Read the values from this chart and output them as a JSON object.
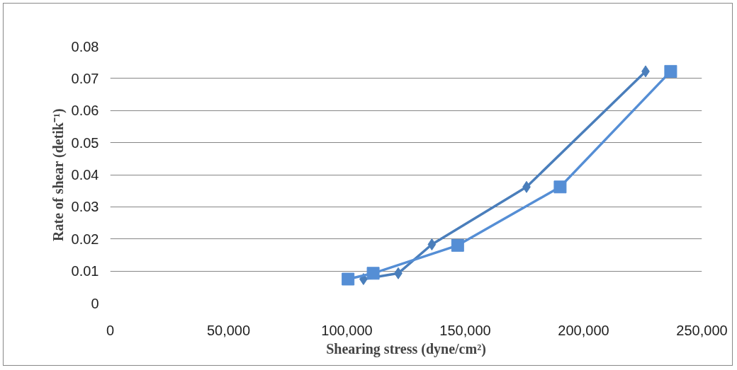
{
  "chart_data": {
    "type": "line",
    "xlabel": "Shearing stress (dyne/cm²)",
    "ylabel": "Rate of shear (detik⁻¹)",
    "xlim": [
      0,
      250000
    ],
    "ylim": [
      0,
      0.08
    ],
    "xticks": [
      {
        "value": 0,
        "label": "0"
      },
      {
        "value": 50000,
        "label": "50,000"
      },
      {
        "value": 100000,
        "label": "100,000"
      },
      {
        "value": 150000,
        "label": "150,000"
      },
      {
        "value": 200000,
        "label": "200,000"
      },
      {
        "value": 250000,
        "label": "250,000"
      }
    ],
    "yticks": [
      0,
      0.01,
      0.02,
      0.03,
      0.04,
      0.05,
      0.06,
      0.07,
      0.08
    ],
    "grid": "y",
    "line_style": "solid",
    "series": [
      {
        "color": "#4a7ebb",
        "marker": "diamond",
        "x": [
          107000,
          121700,
          135900,
          175900,
          226200
        ],
        "values": [
          0.0075,
          0.0093,
          0.0183,
          0.0362,
          0.0722
        ]
      },
      {
        "color": "#558ed5",
        "marker": "square",
        "x": [
          100500,
          111100,
          146800,
          190100,
          236800
        ],
        "values": [
          0.0075,
          0.0093,
          0.018,
          0.0362,
          0.0722
        ]
      }
    ]
  }
}
